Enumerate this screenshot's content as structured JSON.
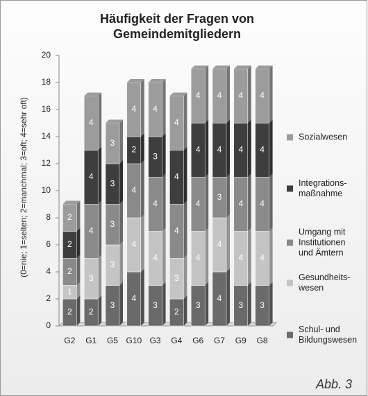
{
  "chart_data": {
    "type": "bar",
    "stacked": true,
    "title": "Häufigkeit der Fragen von\nGemeindemitgliedern",
    "y_label": "(0=nie; 1=selten; 2=manchmal; 3=oft; 4=sehr oft)",
    "categories": [
      "G2",
      "G1",
      "G5",
      "G10",
      "G3",
      "G4",
      "G6",
      "G7",
      "G9",
      "G8"
    ],
    "series": [
      {
        "name": "Schul- und\nBildungswesen",
        "color": "#6a6a6a",
        "values": [
          2,
          2,
          3,
          4,
          3,
          2,
          3,
          4,
          3,
          3
        ]
      },
      {
        "name": "Gesundheits-\nwesen",
        "color": "#c4c4c4",
        "values": [
          1,
          3,
          3,
          4,
          4,
          3,
          4,
          4,
          4,
          4
        ]
      },
      {
        "name": "Umgang mit\nInstitutionen\nund Ämtern",
        "color": "#8a8a8a",
        "values": [
          2,
          4,
          3,
          4,
          4,
          4,
          4,
          3,
          4,
          4
        ]
      },
      {
        "name": "Integrations-\nmaßnahme",
        "color": "#3e3e3e",
        "values": [
          2,
          4,
          3,
          2,
          3,
          4,
          4,
          4,
          4,
          4
        ]
      },
      {
        "name": "Sozialwesen",
        "color": "#9c9c9c",
        "values": [
          2,
          4,
          3,
          4,
          4,
          4,
          4,
          4,
          4,
          4
        ]
      }
    ],
    "ylim": [
      0,
      20
    ],
    "yticks": [
      0,
      2,
      4,
      6,
      8,
      10,
      12,
      14,
      16,
      18,
      20
    ],
    "grid": false,
    "legend": "right",
    "caption": "Abb. 3"
  }
}
